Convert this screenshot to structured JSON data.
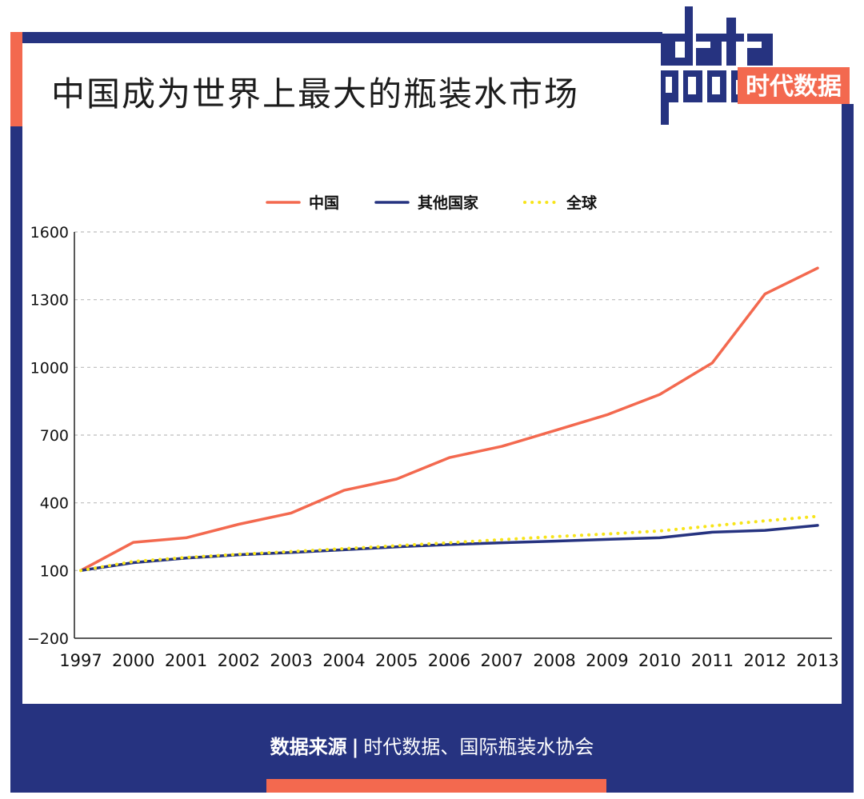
{
  "header": {
    "title": "中国成为世界上最大的瓶装水市场",
    "logo_text": "data",
    "logo_tagline": "时代数据"
  },
  "footer": {
    "source_label": "数据来源",
    "separator": "|",
    "source_text": "时代数据、国际瓶装水协会"
  },
  "colors": {
    "navy": "#263380",
    "orange": "#f3694f",
    "yellow": "#f7e41a"
  },
  "chart_data": {
    "type": "line",
    "title": "中国成为世界上最大的瓶装水市场",
    "categories": [
      "1997",
      "2000",
      "2001",
      "2002",
      "2003",
      "2004",
      "2005",
      "2006",
      "2007",
      "2008",
      "2009",
      "2010",
      "2011",
      "2012",
      "2013"
    ],
    "ylim": [
      -200,
      1600
    ],
    "yticks": [
      -200,
      100,
      400,
      700,
      1000,
      1300,
      1600
    ],
    "yticks_labels": [
      "−200",
      "100",
      "400",
      "700",
      "1000",
      "1300",
      "1600"
    ],
    "grid": true,
    "legend_position": "top-center",
    "series": [
      {
        "name": "中国",
        "color": "#f3694f",
        "style": "solid",
        "values": [
          100,
          225,
          245,
          305,
          355,
          455,
          505,
          600,
          650,
          720,
          790,
          880,
          1020,
          1325,
          1440
        ]
      },
      {
        "name": "其他国家",
        "color": "#263380",
        "style": "solid",
        "values": [
          100,
          135,
          155,
          170,
          180,
          192,
          205,
          215,
          223,
          230,
          238,
          245,
          270,
          278,
          300
        ]
      },
      {
        "name": "全球",
        "color": "#f7e41a",
        "style": "dotted",
        "values": [
          100,
          140,
          158,
          172,
          184,
          197,
          210,
          223,
          237,
          250,
          262,
          275,
          298,
          320,
          340
        ]
      }
    ]
  }
}
